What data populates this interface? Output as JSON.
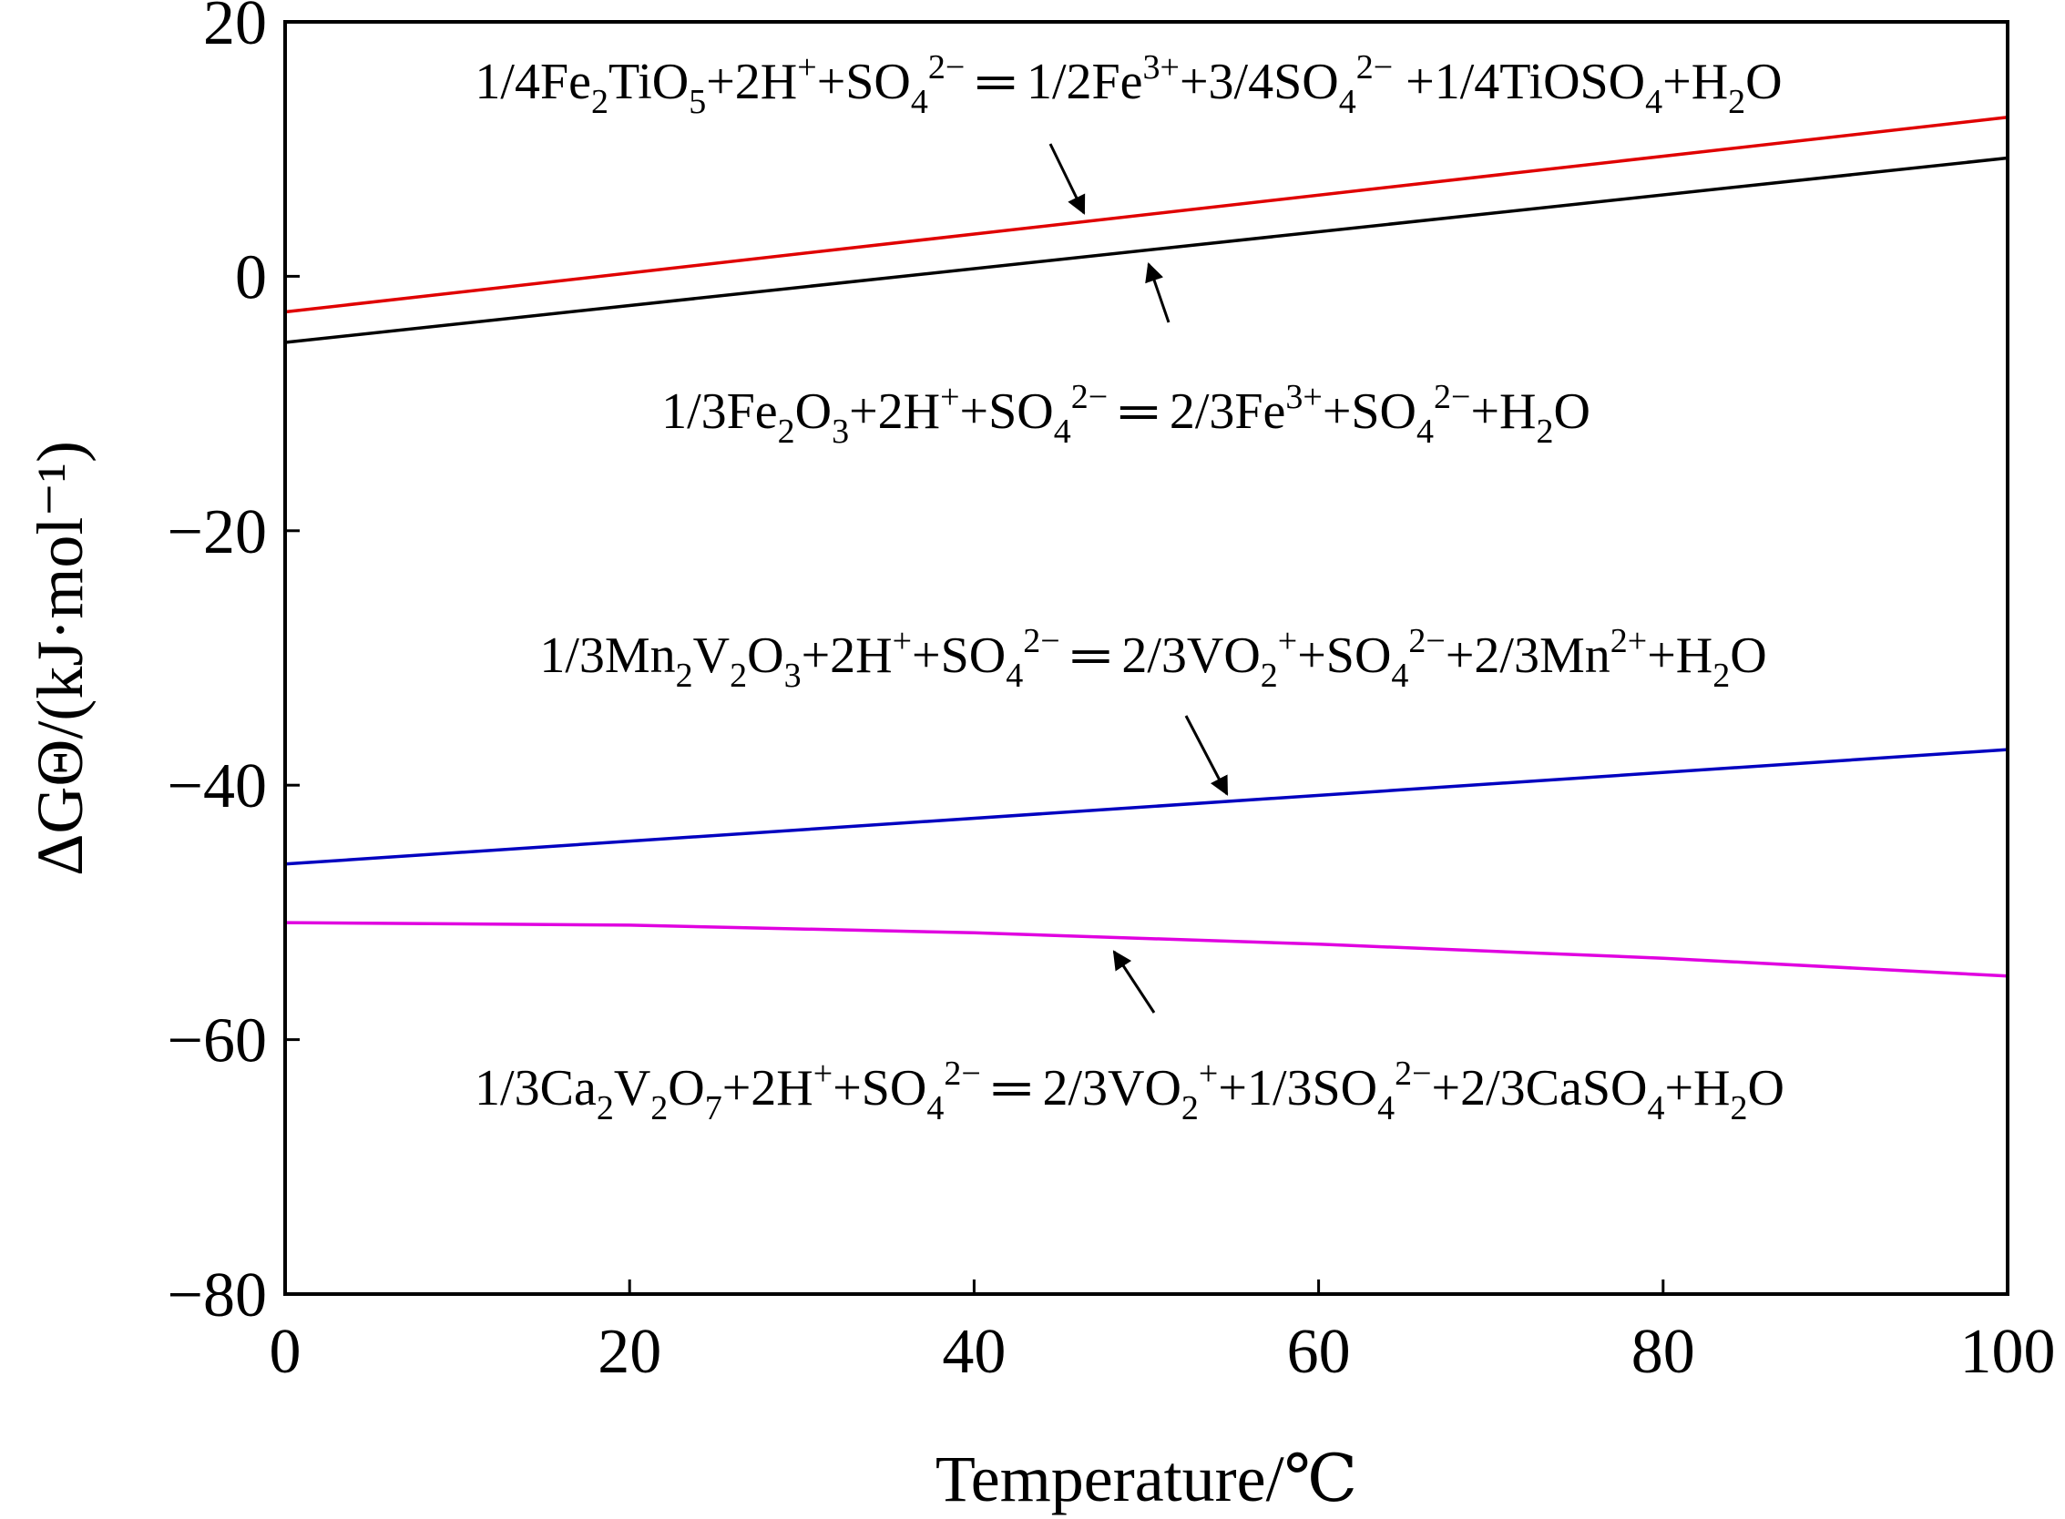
{
  "chart_data": {
    "type": "line",
    "title": "",
    "xlabel": "Temperature/℃",
    "ylabel": "ΔGΘ/(kJ·mol⁻¹)",
    "xlim": [
      0,
      100
    ],
    "ylim": [
      -80,
      20
    ],
    "xticks": [
      0,
      20,
      40,
      60,
      80,
      100
    ],
    "yticks": [
      -80,
      -60,
      -40,
      -20,
      0,
      20
    ],
    "xtick_labels": [
      "0",
      "20",
      "40",
      "60",
      "80",
      "100"
    ],
    "ytick_labels": [
      "−80",
      "−60",
      "−40",
      "−20",
      "0",
      "20"
    ],
    "grid": false,
    "series": [
      {
        "name": "Fe2TiO5",
        "color": "#e00000",
        "x": [
          0,
          100
        ],
        "y": [
          -2.8,
          12.5
        ],
        "label": [
          {
            "t": "1/4Fe"
          },
          {
            "t": "2",
            "k": "sub"
          },
          {
            "t": "TiO"
          },
          {
            "t": "5",
            "k": "sub"
          },
          {
            "t": "+2H"
          },
          {
            "t": "+",
            "k": "sup"
          },
          {
            "t": "+SO"
          },
          {
            "t": "4",
            "k": "sub"
          },
          {
            "t": "2−",
            "k": "sup"
          },
          {
            "t": " ═ 1/2Fe"
          },
          {
            "t": "3+",
            "k": "sup"
          },
          {
            "t": "+3/4SO"
          },
          {
            "t": "4",
            "k": "sub"
          },
          {
            "t": "2−",
            "k": "sup"
          },
          {
            "t": " +1/4TiOSO"
          },
          {
            "t": "4",
            "k": "sub"
          },
          {
            "t": "+H"
          },
          {
            "t": "2",
            "k": "sub"
          },
          {
            "t": "O"
          }
        ]
      },
      {
        "name": "Fe2O3",
        "color": "#000000",
        "x": [
          0,
          100
        ],
        "y": [
          -5.2,
          9.3
        ],
        "label": [
          {
            "t": "1/3Fe"
          },
          {
            "t": "2",
            "k": "sub"
          },
          {
            "t": "O"
          },
          {
            "t": "3",
            "k": "sub"
          },
          {
            "t": "+2H"
          },
          {
            "t": "+",
            "k": "sup"
          },
          {
            "t": "+SO"
          },
          {
            "t": "4",
            "k": "sub"
          },
          {
            "t": "2−",
            "k": "sup"
          },
          {
            "t": " ═ 2/3Fe"
          },
          {
            "t": "3+",
            "k": "sup"
          },
          {
            "t": "+SO"
          },
          {
            "t": "4",
            "k": "sub"
          },
          {
            "t": "2−",
            "k": "sup"
          },
          {
            "t": "+H"
          },
          {
            "t": "2",
            "k": "sub"
          },
          {
            "t": "O"
          }
        ]
      },
      {
        "name": "Mn2V2O3",
        "color": "#0000c0",
        "x": [
          0,
          100
        ],
        "y": [
          -46.2,
          -37.2
        ],
        "label": [
          {
            "t": "1/3Mn"
          },
          {
            "t": "2",
            "k": "sub"
          },
          {
            "t": "V"
          },
          {
            "t": "2",
            "k": "sub"
          },
          {
            "t": "O"
          },
          {
            "t": "3",
            "k": "sub"
          },
          {
            "t": "+2H"
          },
          {
            "t": "+",
            "k": "sup"
          },
          {
            "t": "+SO"
          },
          {
            "t": "4",
            "k": "sub"
          },
          {
            "t": "2−",
            "k": "sup"
          },
          {
            "t": " ═ 2/3VO"
          },
          {
            "t": "2",
            "k": "sub"
          },
          {
            "t": "+",
            "k": "sup"
          },
          {
            "t": "+SO"
          },
          {
            "t": "4",
            "k": "sub"
          },
          {
            "t": "2−",
            "k": "sup"
          },
          {
            "t": "+2/3Mn"
          },
          {
            "t": "2+",
            "k": "sup"
          },
          {
            "t": "+H"
          },
          {
            "t": "2",
            "k": "sub"
          },
          {
            "t": "O"
          }
        ]
      },
      {
        "name": "Ca2V2O7",
        "color": "#e000e0",
        "x": [
          0,
          20,
          40,
          60,
          80,
          100
        ],
        "y": [
          -50.8,
          -51.0,
          -51.6,
          -52.5,
          -53.6,
          -55.0
        ],
        "label": [
          {
            "t": "1/3Ca"
          },
          {
            "t": "2",
            "k": "sub"
          },
          {
            "t": "V"
          },
          {
            "t": "2",
            "k": "sub"
          },
          {
            "t": "O"
          },
          {
            "t": "7",
            "k": "sub"
          },
          {
            "t": "+2H"
          },
          {
            "t": "+",
            "k": "sup"
          },
          {
            "t": "+SO"
          },
          {
            "t": "4",
            "k": "sub"
          },
          {
            "t": "2−",
            "k": "sup"
          },
          {
            "t": " ═ 2/3VO"
          },
          {
            "t": "2",
            "k": "sub"
          },
          {
            "t": "+",
            "k": "sup"
          },
          {
            "t": "+1/3SO"
          },
          {
            "t": "4",
            "k": "sub"
          },
          {
            "t": "2−",
            "k": "sup"
          },
          {
            "t": "+2/3CaSO"
          },
          {
            "t": "4",
            "k": "sub"
          },
          {
            "t": "+H"
          },
          {
            "t": "2",
            "k": "sub"
          },
          {
            "t": "O"
          }
        ]
      }
    ]
  }
}
